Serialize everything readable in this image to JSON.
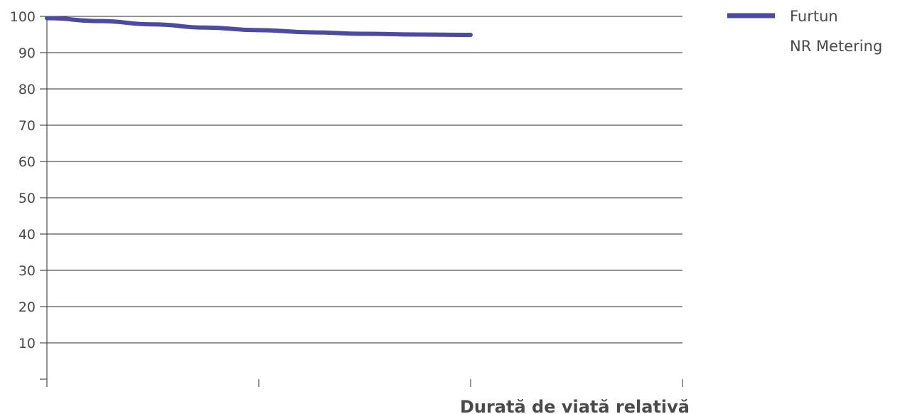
{
  "chart_data": {
    "type": "line",
    "title": "",
    "xlabel": "Durată de viață relativă",
    "ylabel": "",
    "ylim": [
      0,
      100
    ],
    "yticks": [
      10,
      20,
      30,
      40,
      50,
      60,
      70,
      80,
      90,
      100
    ],
    "xlim": [
      0,
      3
    ],
    "grid": true,
    "legend_position": "top-right",
    "series": [
      {
        "name": "Furtun",
        "name_line2": "NR Metering",
        "color": "#4e4a9c",
        "x": [
          0,
          0.25,
          0.5,
          0.75,
          1.0,
          1.25,
          1.5,
          1.75,
          2.0
        ],
        "y": [
          99.5,
          98.7,
          97.8,
          96.9,
          96.2,
          95.6,
          95.2,
          95.0,
          94.9
        ]
      }
    ]
  }
}
